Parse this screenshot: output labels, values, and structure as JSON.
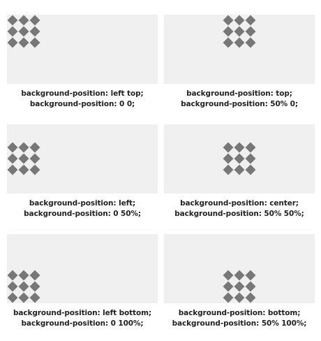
{
  "colors": {
    "box_background": "#f0f0f0",
    "diamond_fill": "#777777",
    "caption_text": "#222222"
  },
  "pattern_icon": "diamond-grid-icon",
  "examples": [
    {
      "line1": "background-position: left top;",
      "line2": "background-position: 0 0;",
      "pos": "left top"
    },
    {
      "line1": "background-position: top;",
      "line2": "background-position: 50% 0;",
      "pos": "center top"
    },
    {
      "line1": "background-position: left;",
      "line2": "background-position: 0 50%;",
      "pos": "left center"
    },
    {
      "line1": "background-position: center;",
      "line2": "background-position: 50% 50%;",
      "pos": "center center"
    },
    {
      "line1": "background-position: left bottom;",
      "line2": "background-position: 0 100%;",
      "pos": "left bottom"
    },
    {
      "line1": "background-position: bottom;",
      "line2": "background-position: 50% 100%;",
      "pos": "center bottom"
    }
  ]
}
